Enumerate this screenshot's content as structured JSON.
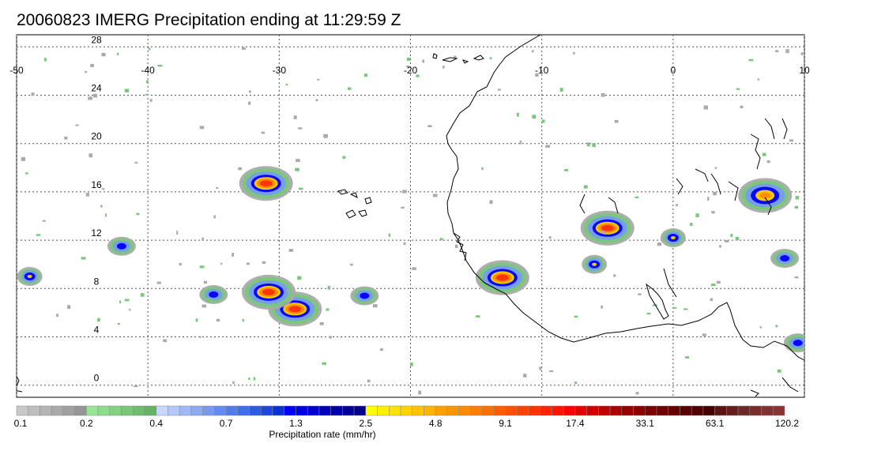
{
  "title": "20060823 IMERG Precipitation ending at 11:29:59 Z",
  "map": {
    "lon_range": [
      -50,
      10
    ],
    "lat_range": [
      -1,
      29
    ],
    "lon_ticks": [
      "-50",
      "-40",
      "-30",
      "-20",
      "-10",
      "0",
      "10"
    ],
    "lat_ticks": [
      "0",
      "4",
      "8",
      "12",
      "16",
      "20",
      "24",
      "28"
    ],
    "grid": "dotted"
  },
  "colorbar": {
    "title": "Precipitation rate (mm/hr)",
    "tick_labels": [
      "0.1",
      "0.2",
      "0.4",
      "0.7",
      "1.3",
      "2.5",
      "4.8",
      "9.1",
      "17.4",
      "33.1",
      "63.1",
      "120.2"
    ],
    "colors": [
      "#c8c8c8",
      "#bebebe",
      "#b4b4b4",
      "#aaaaaa",
      "#a0a0a0",
      "#969696",
      "#96e696",
      "#8cdc8c",
      "#82d282",
      "#78c878",
      "#6ebe6e",
      "#64b464",
      "#c8d7ff",
      "#b4c8fa",
      "#a0b9f5",
      "#8caaf0",
      "#789bf0",
      "#648cf0",
      "#507deb",
      "#3c6ee6",
      "#2d5ae1",
      "#1e46dc",
      "#0a32d2",
      "#0000ff",
      "#0000e6",
      "#0000d2",
      "#0000be",
      "#0000aa",
      "#000096",
      "#00008c",
      "#ffff00",
      "#fff000",
      "#ffe100",
      "#ffd200",
      "#ffc300",
      "#ffb400",
      "#ffa000",
      "#ff9600",
      "#ff8c00",
      "#ff7d00",
      "#ff6e00",
      "#ff5f00",
      "#ff5000",
      "#ff4100",
      "#ff3200",
      "#ff2300",
      "#ff1400",
      "#ff0000",
      "#e60000",
      "#d20000",
      "#be0000",
      "#aa0000",
      "#960000",
      "#8c0000",
      "#7d0000",
      "#6e0000",
      "#640000",
      "#5a0000",
      "#500000",
      "#460000",
      "#5a1414",
      "#641e1e",
      "#6e2828",
      "#782d2d",
      "#823232",
      "#8c3232"
    ]
  },
  "precip_features": [
    {
      "lon": -31.0,
      "lat": 16.7,
      "peak": "red"
    },
    {
      "lon": -28.8,
      "lat": 6.3,
      "peak": "red"
    },
    {
      "lon": -30.8,
      "lat": 7.7,
      "peak": "red"
    },
    {
      "lon": -13.0,
      "lat": 8.9,
      "peak": "red"
    },
    {
      "lon": -5.0,
      "lat": 13.0,
      "peak": "red"
    },
    {
      "lon": 7.0,
      "lat": 15.7,
      "peak": "orange"
    },
    {
      "lon": -35.0,
      "lat": 7.5,
      "peak": "blue"
    },
    {
      "lon": -23.5,
      "lat": 7.4,
      "peak": "blue"
    },
    {
      "lon": -49.0,
      "lat": 9.0,
      "peak": "yellow"
    },
    {
      "lon": -42.0,
      "lat": 11.5,
      "peak": "blue"
    },
    {
      "lon": 0.0,
      "lat": 12.2,
      "peak": "yellow"
    },
    {
      "lon": 9.5,
      "lat": 3.5,
      "peak": "blue"
    },
    {
      "lon": -6.0,
      "lat": 10.0,
      "peak": "yellow"
    },
    {
      "lon": 8.5,
      "lat": 10.5,
      "peak": "blue"
    }
  ]
}
